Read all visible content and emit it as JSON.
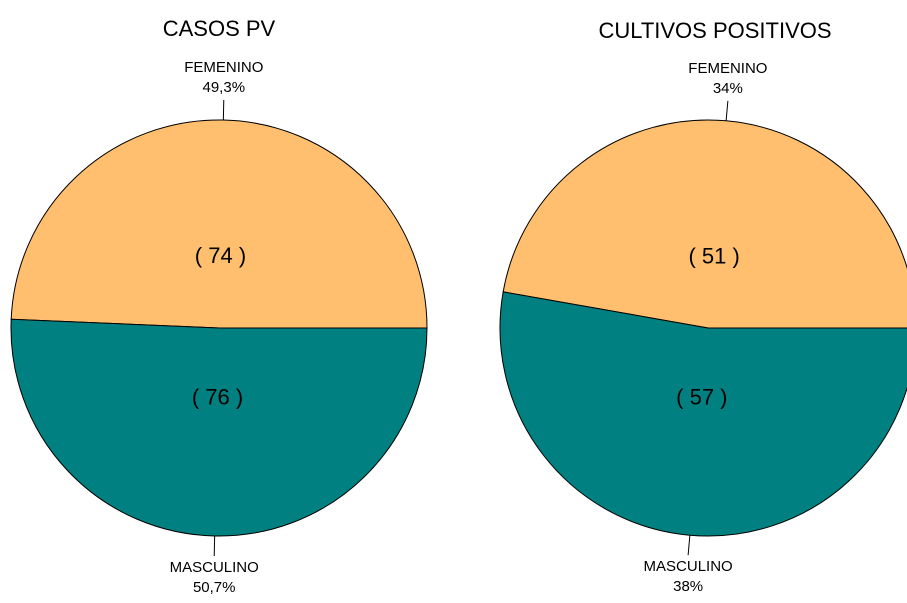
{
  "chart_data": [
    {
      "type": "pie",
      "title": "CASOS PV",
      "categories": [
        "FEMENINO",
        "MASCULINO"
      ],
      "values": [
        74,
        76
      ],
      "value_labels": [
        "( 74 )",
        "( 76 )"
      ],
      "percentages": [
        {
          "value": 49.3,
          "label": "49,3%"
        },
        {
          "value": 50.7,
          "label": "50,7%"
        }
      ],
      "colors": [
        "#FFBF6E",
        "#008080"
      ]
    },
    {
      "type": "pie",
      "title": "CULTIVOS POSITIVOS",
      "categories": [
        "FEMENINO",
        "MASCULINO"
      ],
      "values": [
        51,
        57
      ],
      "value_labels": [
        "( 51 )",
        "( 57 )"
      ],
      "percentages": [
        {
          "value": 34,
          "label": "34%"
        },
        {
          "value": 38,
          "label": "38%"
        }
      ],
      "colors": [
        "#FFBF6E",
        "#008080"
      ]
    }
  ]
}
